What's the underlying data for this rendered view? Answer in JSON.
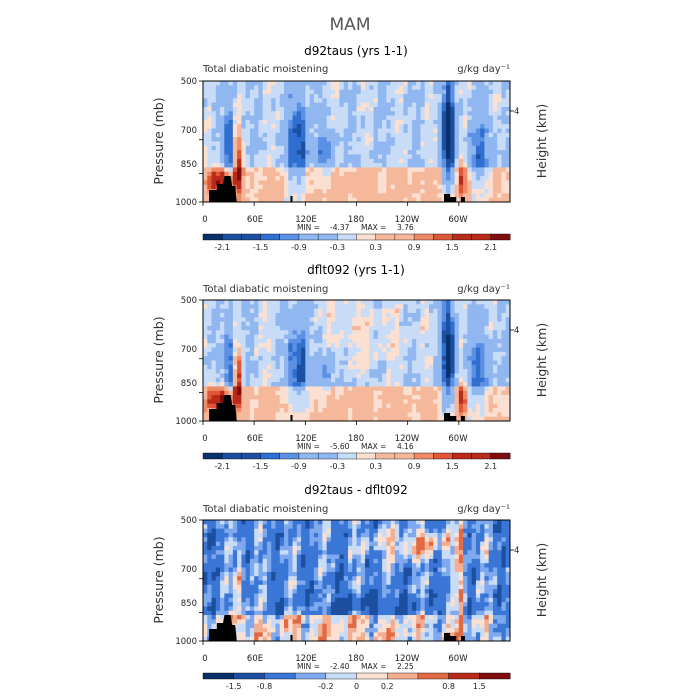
{
  "figure_title": "MAM",
  "colors": {
    "diverging_12": [
      "#08306b",
      "#1c4fa0",
      "#2f6fd0",
      "#5b90e4",
      "#90b7f0",
      "#c8dcf7",
      "#fbe0d2",
      "#f6b89b",
      "#ef8a68",
      "#de5736",
      "#b82a1a",
      "#7f0d0d"
    ],
    "diverging_10": [
      "#08306b",
      "#1c4fa0",
      "#3a76d6",
      "#7fa9ee",
      "#c8dcf7",
      "#fbe0d2",
      "#f4ae8f",
      "#e06a44",
      "#b82a1a",
      "#7f0d0d"
    ],
    "topography": "#000000"
  },
  "chart_data": [
    {
      "type": "heatmap",
      "title": "d92taus (yrs 1-1)",
      "subtitle_left": "Total diabatic moistening",
      "units": "g/kg day⁻¹",
      "ylabel": "Pressure (mb)",
      "ylabel_right": "Height (km)",
      "x_ticks": [
        "0",
        "60E",
        "120E",
        "180",
        "120W",
        "60W"
      ],
      "x_tick_values": [
        0,
        60,
        120,
        180,
        240,
        300
      ],
      "x_range": [
        0,
        360
      ],
      "y_ticks": [
        "500",
        "700",
        "850",
        "1000"
      ],
      "y_tick_values": [
        500,
        700,
        850,
        1000
      ],
      "y_range": [
        500,
        1000
      ],
      "y_scale": "log",
      "right_ticks": [
        "4"
      ],
      "min_label": "MIN =",
      "min_value": "-4.37",
      "max_label": "MAX =",
      "max_value": "3.76",
      "colorbar_labels": [
        "-2.1",
        "-1.5",
        "-0.9",
        "-0.3",
        "0.3",
        "0.9",
        "1.5",
        "2.1"
      ],
      "colorbar_levels": [
        -2.1,
        -1.8,
        -1.5,
        -1.2,
        -0.9,
        -0.6,
        -0.3,
        0,
        0.3,
        0.6,
        0.9,
        1.2,
        1.5,
        1.8,
        2.1
      ]
    },
    {
      "type": "heatmap",
      "title": "dflt092 (yrs 1-1)",
      "subtitle_left": "Total diabatic moistening",
      "units": "g/kg day⁻¹",
      "ylabel": "Pressure (mb)",
      "ylabel_right": "Height (km)",
      "x_ticks": [
        "0",
        "60E",
        "120E",
        "180",
        "120W",
        "60W"
      ],
      "x_tick_values": [
        0,
        60,
        120,
        180,
        240,
        300
      ],
      "x_range": [
        0,
        360
      ],
      "y_ticks": [
        "500",
        "700",
        "850",
        "1000"
      ],
      "y_tick_values": [
        500,
        700,
        850,
        1000
      ],
      "y_range": [
        500,
        1000
      ],
      "y_scale": "log",
      "right_ticks": [
        "4"
      ],
      "min_label": "MIN =",
      "min_value": "-5.60",
      "max_label": "MAX =",
      "max_value": "4.16",
      "colorbar_labels": [
        "-2.1",
        "-1.5",
        "-0.9",
        "-0.3",
        "0.3",
        "0.9",
        "1.5",
        "2.1"
      ],
      "colorbar_levels": [
        -2.1,
        -1.8,
        -1.5,
        -1.2,
        -0.9,
        -0.6,
        -0.3,
        0,
        0.3,
        0.6,
        0.9,
        1.2,
        1.5,
        1.8,
        2.1
      ]
    },
    {
      "type": "heatmap",
      "title": "d92taus - dflt092",
      "subtitle_left": "Total diabatic moistening",
      "units": "g/kg day⁻¹",
      "ylabel": "Pressure (mb)",
      "ylabel_right": "Height (km)",
      "x_ticks": [
        "0",
        "60E",
        "120E",
        "180",
        "120W",
        "60W"
      ],
      "x_tick_values": [
        0,
        60,
        120,
        180,
        240,
        300
      ],
      "x_range": [
        0,
        360
      ],
      "y_ticks": [
        "500",
        "700",
        "850",
        "1000"
      ],
      "y_tick_values": [
        500,
        700,
        850,
        1000
      ],
      "y_range": [
        500,
        1000
      ],
      "y_scale": "log",
      "right_ticks": [
        "4"
      ],
      "min_label": "MIN =",
      "min_value": "-2.40",
      "max_label": "MAX =",
      "max_value": "2.25",
      "colorbar_labels": [
        "-1.5",
        "-0.8",
        "-0.2",
        "0",
        "0.2",
        "0.8",
        "1.5"
      ],
      "colorbar_levels": [
        -1.5,
        -0.8,
        -0.4,
        -0.2,
        0,
        0.2,
        0.4,
        0.8,
        1.5
      ]
    }
  ]
}
